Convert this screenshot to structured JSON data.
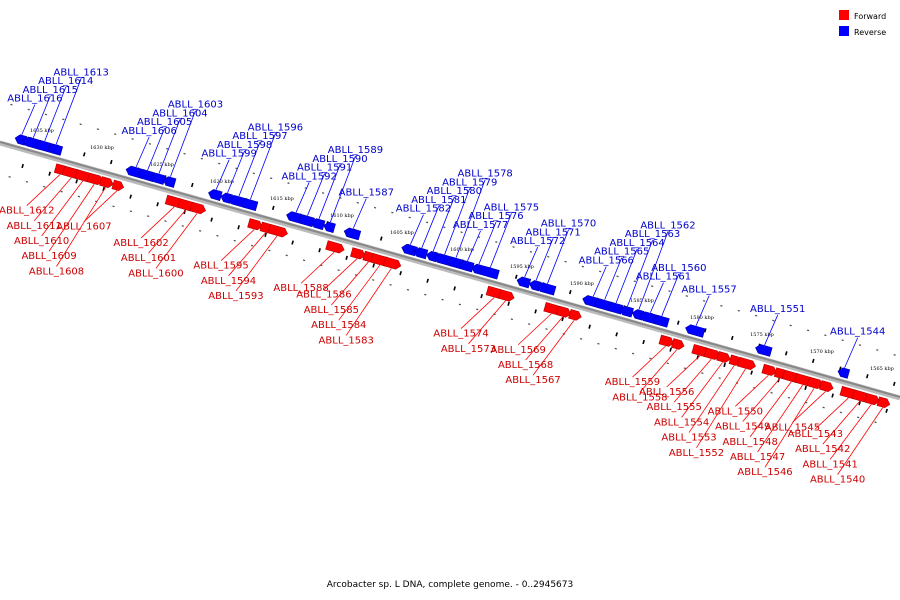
{
  "caption": "Arcobacter sp. L DNA, complete genome. - 0..2945673",
  "legend": [
    {
      "label": "Forward",
      "color": "#ff0000"
    },
    {
      "label": "Reverse",
      "color": "#0000ff"
    }
  ],
  "colors": {
    "forward": "#ff0000",
    "reverse": "#0000ff",
    "axis": "#888888"
  },
  "axis": {
    "kbp_start": 1638,
    "kbp_end": 1563,
    "ticks": [
      "1635 kbp",
      "1630 kbp",
      "1625 kbp",
      "1620 kbp",
      "1615 kbp",
      "1610 kbp",
      "1605 kbp",
      "1600 kbp",
      "1595 kbp",
      "1590 kbp",
      "1585 kbp",
      "1580 kbp",
      "1575 kbp",
      "1570 kbp",
      "1565 kbp"
    ]
  },
  "genes": [
    {
      "name": "ABLL_1616",
      "strand": "reverse"
    },
    {
      "name": "ABLL_1615",
      "strand": "reverse"
    },
    {
      "name": "ABLL_1614",
      "strand": "reverse"
    },
    {
      "name": "ABLL_1613",
      "strand": "reverse"
    },
    {
      "name": "ABLL_1612",
      "strand": "forward"
    },
    {
      "name": "ABLL_1611",
      "strand": "forward"
    },
    {
      "name": "ABLL_1610",
      "strand": "forward"
    },
    {
      "name": "ABLL_1609",
      "strand": "forward"
    },
    {
      "name": "ABLL_1608",
      "strand": "forward"
    },
    {
      "name": "ABLL_1607",
      "strand": "forward"
    },
    {
      "name": "ABLL_1606",
      "strand": "reverse"
    },
    {
      "name": "ABLL_1605",
      "strand": "reverse"
    },
    {
      "name": "ABLL_1604",
      "strand": "reverse"
    },
    {
      "name": "ABLL_1603",
      "strand": "reverse"
    },
    {
      "name": "ABLL_1602",
      "strand": "forward"
    },
    {
      "name": "ABLL_1601",
      "strand": "forward"
    },
    {
      "name": "ABLL_1600",
      "strand": "forward"
    },
    {
      "name": "ABLL_1599",
      "strand": "reverse"
    },
    {
      "name": "ABLL_1598",
      "strand": "reverse"
    },
    {
      "name": "ABLL_1597",
      "strand": "reverse"
    },
    {
      "name": "ABLL_1596",
      "strand": "reverse"
    },
    {
      "name": "ABLL_1595",
      "strand": "forward"
    },
    {
      "name": "ABLL_1594",
      "strand": "forward"
    },
    {
      "name": "ABLL_1593",
      "strand": "forward"
    },
    {
      "name": "ABLL_1592",
      "strand": "reverse"
    },
    {
      "name": "ABLL_1591",
      "strand": "reverse"
    },
    {
      "name": "ABLL_1590",
      "strand": "reverse"
    },
    {
      "name": "ABLL_1589",
      "strand": "reverse"
    },
    {
      "name": "ABLL_1588",
      "strand": "forward"
    },
    {
      "name": "ABLL_1587",
      "strand": "reverse"
    },
    {
      "name": "ABLL_1586",
      "strand": "forward"
    },
    {
      "name": "ABLL_1585",
      "strand": "forward"
    },
    {
      "name": "ABLL_1584",
      "strand": "forward"
    },
    {
      "name": "ABLL_1583",
      "strand": "forward"
    },
    {
      "name": "ABLL_1582",
      "strand": "reverse"
    },
    {
      "name": "ABLL_1581",
      "strand": "reverse"
    },
    {
      "name": "ABLL_1580",
      "strand": "reverse"
    },
    {
      "name": "ABLL_1579",
      "strand": "reverse"
    },
    {
      "name": "ABLL_1578",
      "strand": "reverse"
    },
    {
      "name": "ABLL_1577",
      "strand": "reverse"
    },
    {
      "name": "ABLL_1576",
      "strand": "reverse"
    },
    {
      "name": "ABLL_1575",
      "strand": "reverse"
    },
    {
      "name": "ABLL_1574",
      "strand": "forward"
    },
    {
      "name": "ABLL_1573",
      "strand": "forward"
    },
    {
      "name": "ABLL_1572",
      "strand": "reverse"
    },
    {
      "name": "ABLL_1571",
      "strand": "reverse"
    },
    {
      "name": "ABLL_1570",
      "strand": "reverse"
    },
    {
      "name": "ABLL_1569",
      "strand": "forward"
    },
    {
      "name": "ABLL_1568",
      "strand": "forward"
    },
    {
      "name": "ABLL_1567",
      "strand": "forward"
    },
    {
      "name": "ABLL_1566",
      "strand": "reverse"
    },
    {
      "name": "ABLL_1565",
      "strand": "reverse"
    },
    {
      "name": "ABLL_1564",
      "strand": "reverse"
    },
    {
      "name": "ABLL_1563",
      "strand": "reverse"
    },
    {
      "name": "ABLL_1562",
      "strand": "reverse"
    },
    {
      "name": "ABLL_1561",
      "strand": "reverse"
    },
    {
      "name": "ABLL_1560",
      "strand": "reverse"
    },
    {
      "name": "ABLL_1559",
      "strand": "forward"
    },
    {
      "name": "ABLL_1558",
      "strand": "forward"
    },
    {
      "name": "ABLL_1557",
      "strand": "reverse"
    },
    {
      "name": "ABLL_1556",
      "strand": "forward"
    },
    {
      "name": "ABLL_1555",
      "strand": "forward"
    },
    {
      "name": "ABLL_1554",
      "strand": "forward"
    },
    {
      "name": "ABLL_1553",
      "strand": "forward"
    },
    {
      "name": "ABLL_1552",
      "strand": "forward"
    },
    {
      "name": "ABLL_1551",
      "strand": "reverse"
    },
    {
      "name": "ABLL_1550",
      "strand": "forward"
    },
    {
      "name": "ABLL_1549",
      "strand": "forward"
    },
    {
      "name": "ABLL_1548",
      "strand": "forward"
    },
    {
      "name": "ABLL_1547",
      "strand": "forward"
    },
    {
      "name": "ABLL_1546",
      "strand": "forward"
    },
    {
      "name": "ABLL_1545",
      "strand": "forward"
    },
    {
      "name": "ABLL_1544",
      "strand": "reverse"
    },
    {
      "name": "ABLL_1543",
      "strand": "forward"
    },
    {
      "name": "ABLL_1542",
      "strand": "forward"
    },
    {
      "name": "ABLL_1541",
      "strand": "forward"
    },
    {
      "name": "ABLL_1540",
      "strand": "forward"
    }
  ]
}
